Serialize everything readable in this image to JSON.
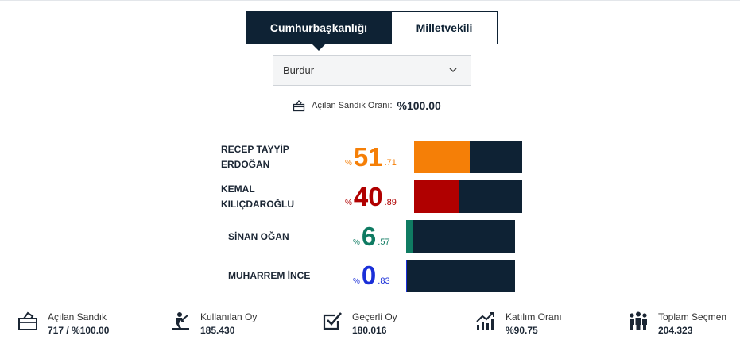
{
  "tabs": {
    "president": "Cumhurbaşkanlığı",
    "parliament": "Milletvekili"
  },
  "province_select": {
    "selected": "Burdur"
  },
  "ballot_rate": {
    "label": "Açılan Sandık Oranı:",
    "value": "%100.00"
  },
  "candidates": [
    {
      "name_line1": "RECEP TAYYİP",
      "name_line2": "ERDOĞAN",
      "sign": "%",
      "int": "51",
      "dec": ".71",
      "share": 51.71,
      "color": "#f57f07"
    },
    {
      "name_line1": "KEMAL",
      "name_line2": "KILIÇDAROĞLU",
      "sign": "%",
      "int": "40",
      "dec": ".89",
      "share": 40.89,
      "color": "#b00000"
    },
    {
      "name_line1": "SİNAN OĞAN",
      "name_line2": "",
      "sign": "%",
      "int": "6",
      "dec": ".57",
      "share": 6.57,
      "color": "#0f7b62"
    },
    {
      "name_line1": "MUHARREM İNCE",
      "name_line2": "",
      "sign": "%",
      "int": "0",
      "dec": ".83",
      "share": 0.83,
      "color": "#1a2fd8"
    }
  ],
  "stats": [
    {
      "label": "Açılan Sandık",
      "value": "717 / %100.00",
      "icon": "ballot-box-icon"
    },
    {
      "label": "Kullanılan Oy",
      "value": "185.430",
      "icon": "voter-icon"
    },
    {
      "label": "Geçerli Oy",
      "value": "180.016",
      "icon": "checkbox-icon"
    },
    {
      "label": "Katılım Oranı",
      "value": "%90.75",
      "icon": "growth-chart-icon"
    },
    {
      "label": "Toplam Seçmen",
      "value": "204.323",
      "icon": "people-icon"
    }
  ],
  "colors": {
    "navy": "#0e2234"
  }
}
